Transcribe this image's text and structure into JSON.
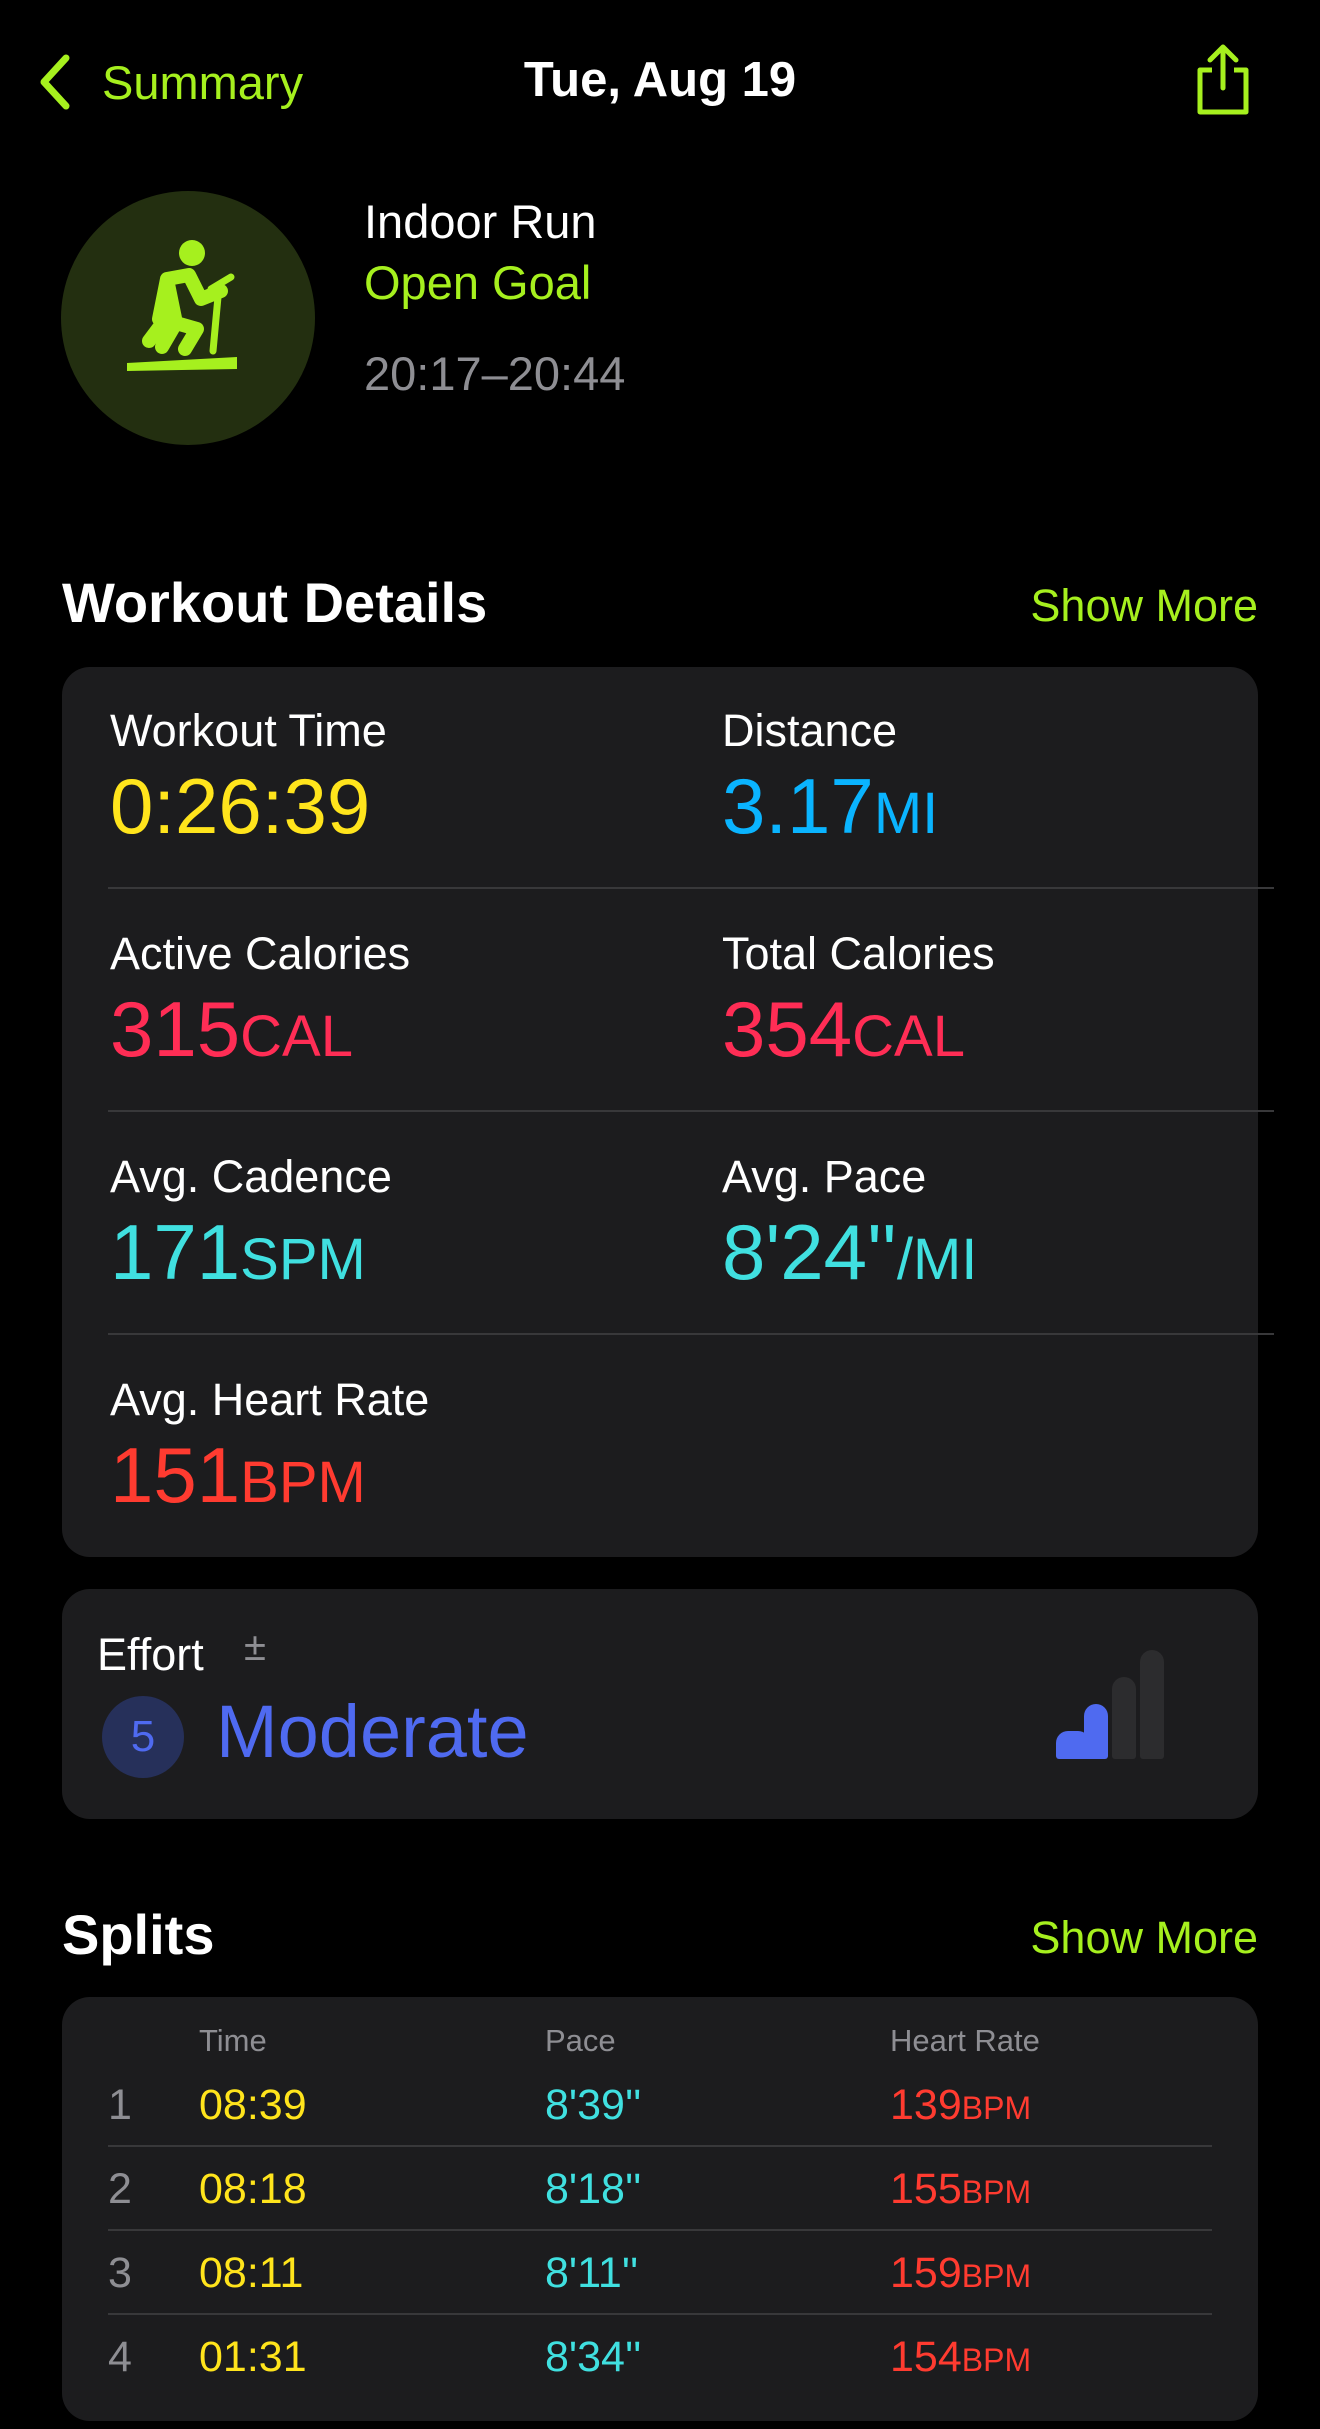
{
  "nav": {
    "back_label": "Summary",
    "title": "Tue, Aug 19",
    "share_icon": "share-icon"
  },
  "workout": {
    "name": "Indoor Run",
    "goal": "Open Goal",
    "time_range": "20:17–20:44",
    "icon": "treadmill-runner-icon"
  },
  "details": {
    "title": "Workout Details",
    "show_more": "Show More",
    "metrics": [
      {
        "label": "Workout Time",
        "value": "0:26:39",
        "unit": "",
        "color": "#ffe41c"
      },
      {
        "label": "Distance",
        "value": "3.17",
        "unit": "MI",
        "color": "#0ab4ff"
      },
      {
        "label": "Active Calories",
        "value": "315",
        "unit": "CAL",
        "color": "#ff2d55"
      },
      {
        "label": "Total Calories",
        "value": "354",
        "unit": "CAL",
        "color": "#ff2d55"
      },
      {
        "label": "Avg. Cadence",
        "value": "171",
        "unit": "SPM",
        "color": "#40e0e0"
      },
      {
        "label": "Avg. Pace",
        "value": "8'24''",
        "unit": "/MI",
        "color": "#40e0e0"
      },
      {
        "label": "Avg. Heart Rate",
        "value": "151",
        "unit": "BPM",
        "color": "#ff3b30"
      }
    ]
  },
  "effort": {
    "label": "Effort",
    "adjust_symbol": "±",
    "score": "5",
    "level": "Moderate",
    "bars_filled": 2,
    "bars_total": 4,
    "color": "#4f6af0"
  },
  "splits": {
    "title": "Splits",
    "show_more": "Show More",
    "headers": {
      "time": "Time",
      "pace": "Pace",
      "heart_rate": "Heart Rate"
    },
    "rows": [
      {
        "n": "1",
        "time": "08:39",
        "pace": "8'39''",
        "hr": "139",
        "unit": "BPM"
      },
      {
        "n": "2",
        "time": "08:18",
        "pace": "8'18''",
        "hr": "155",
        "unit": "BPM"
      },
      {
        "n": "3",
        "time": "08:11",
        "pace": "8'11''",
        "hr": "159",
        "unit": "BPM"
      },
      {
        "n": "4",
        "time": "01:31",
        "pace": "8'34''",
        "hr": "154",
        "unit": "BPM"
      }
    ]
  }
}
